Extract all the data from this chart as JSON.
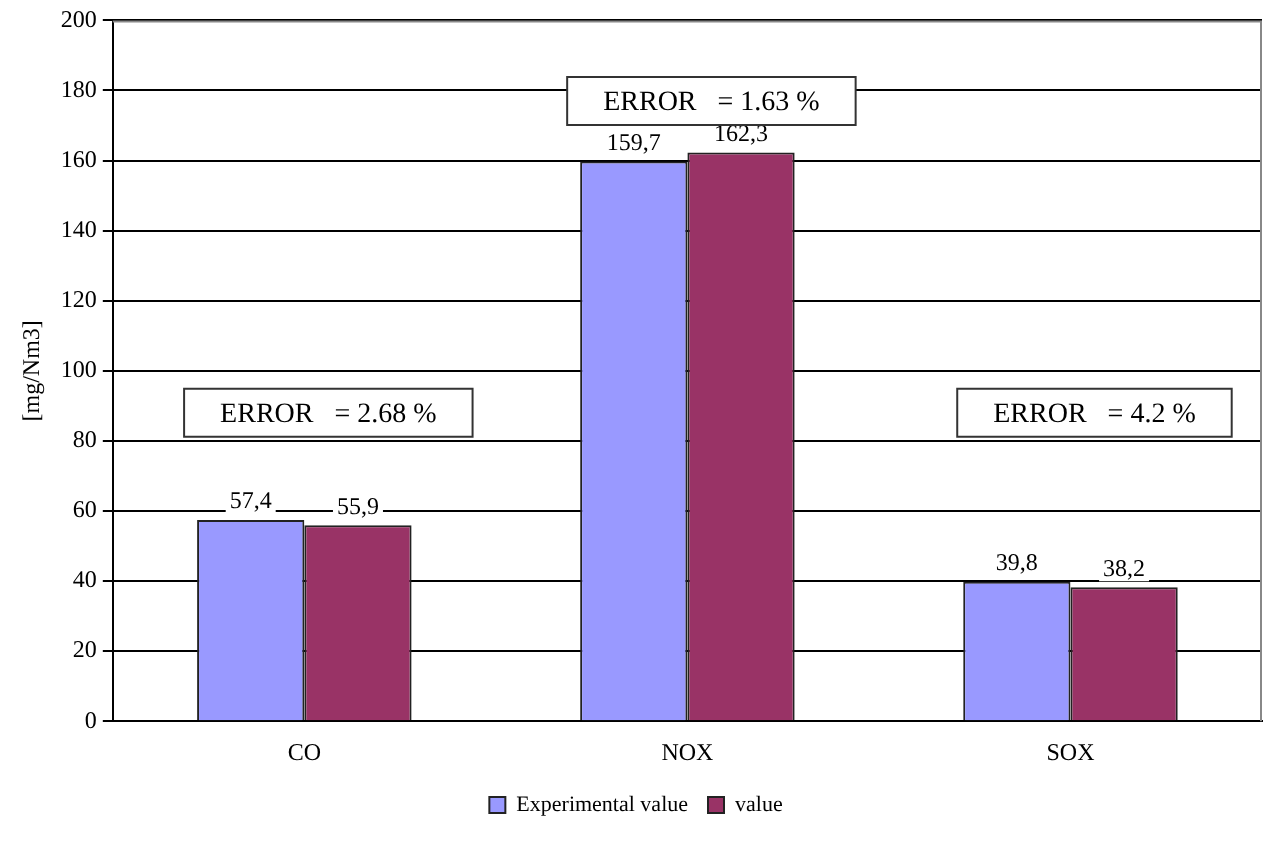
{
  "chart_data": {
    "type": "bar",
    "ylabel": "[mg/Nm3]",
    "categories": [
      "CO",
      "NOX",
      "SOX"
    ],
    "series": [
      {
        "name": "Experimental value",
        "color": "#9999ff",
        "values": [
          57.4,
          159.7,
          39.8
        ],
        "value_labels": [
          "57,4",
          "159,7",
          "39,8"
        ]
      },
      {
        "name": "value",
        "color": "#993366",
        "values": [
          55.9,
          162.3,
          38.2
        ],
        "value_labels": [
          "55,9",
          "162,3",
          "38,2"
        ]
      }
    ],
    "ylim": [
      0,
      200
    ],
    "yticks": [
      0,
      20,
      40,
      60,
      80,
      100,
      120,
      140,
      160,
      180,
      200
    ],
    "grid": "y",
    "legend": "bottom",
    "annotations": [
      "ERROR   = 2.68 %",
      "ERROR   = 1.63 %",
      "ERROR   = 4.2 %"
    ]
  }
}
